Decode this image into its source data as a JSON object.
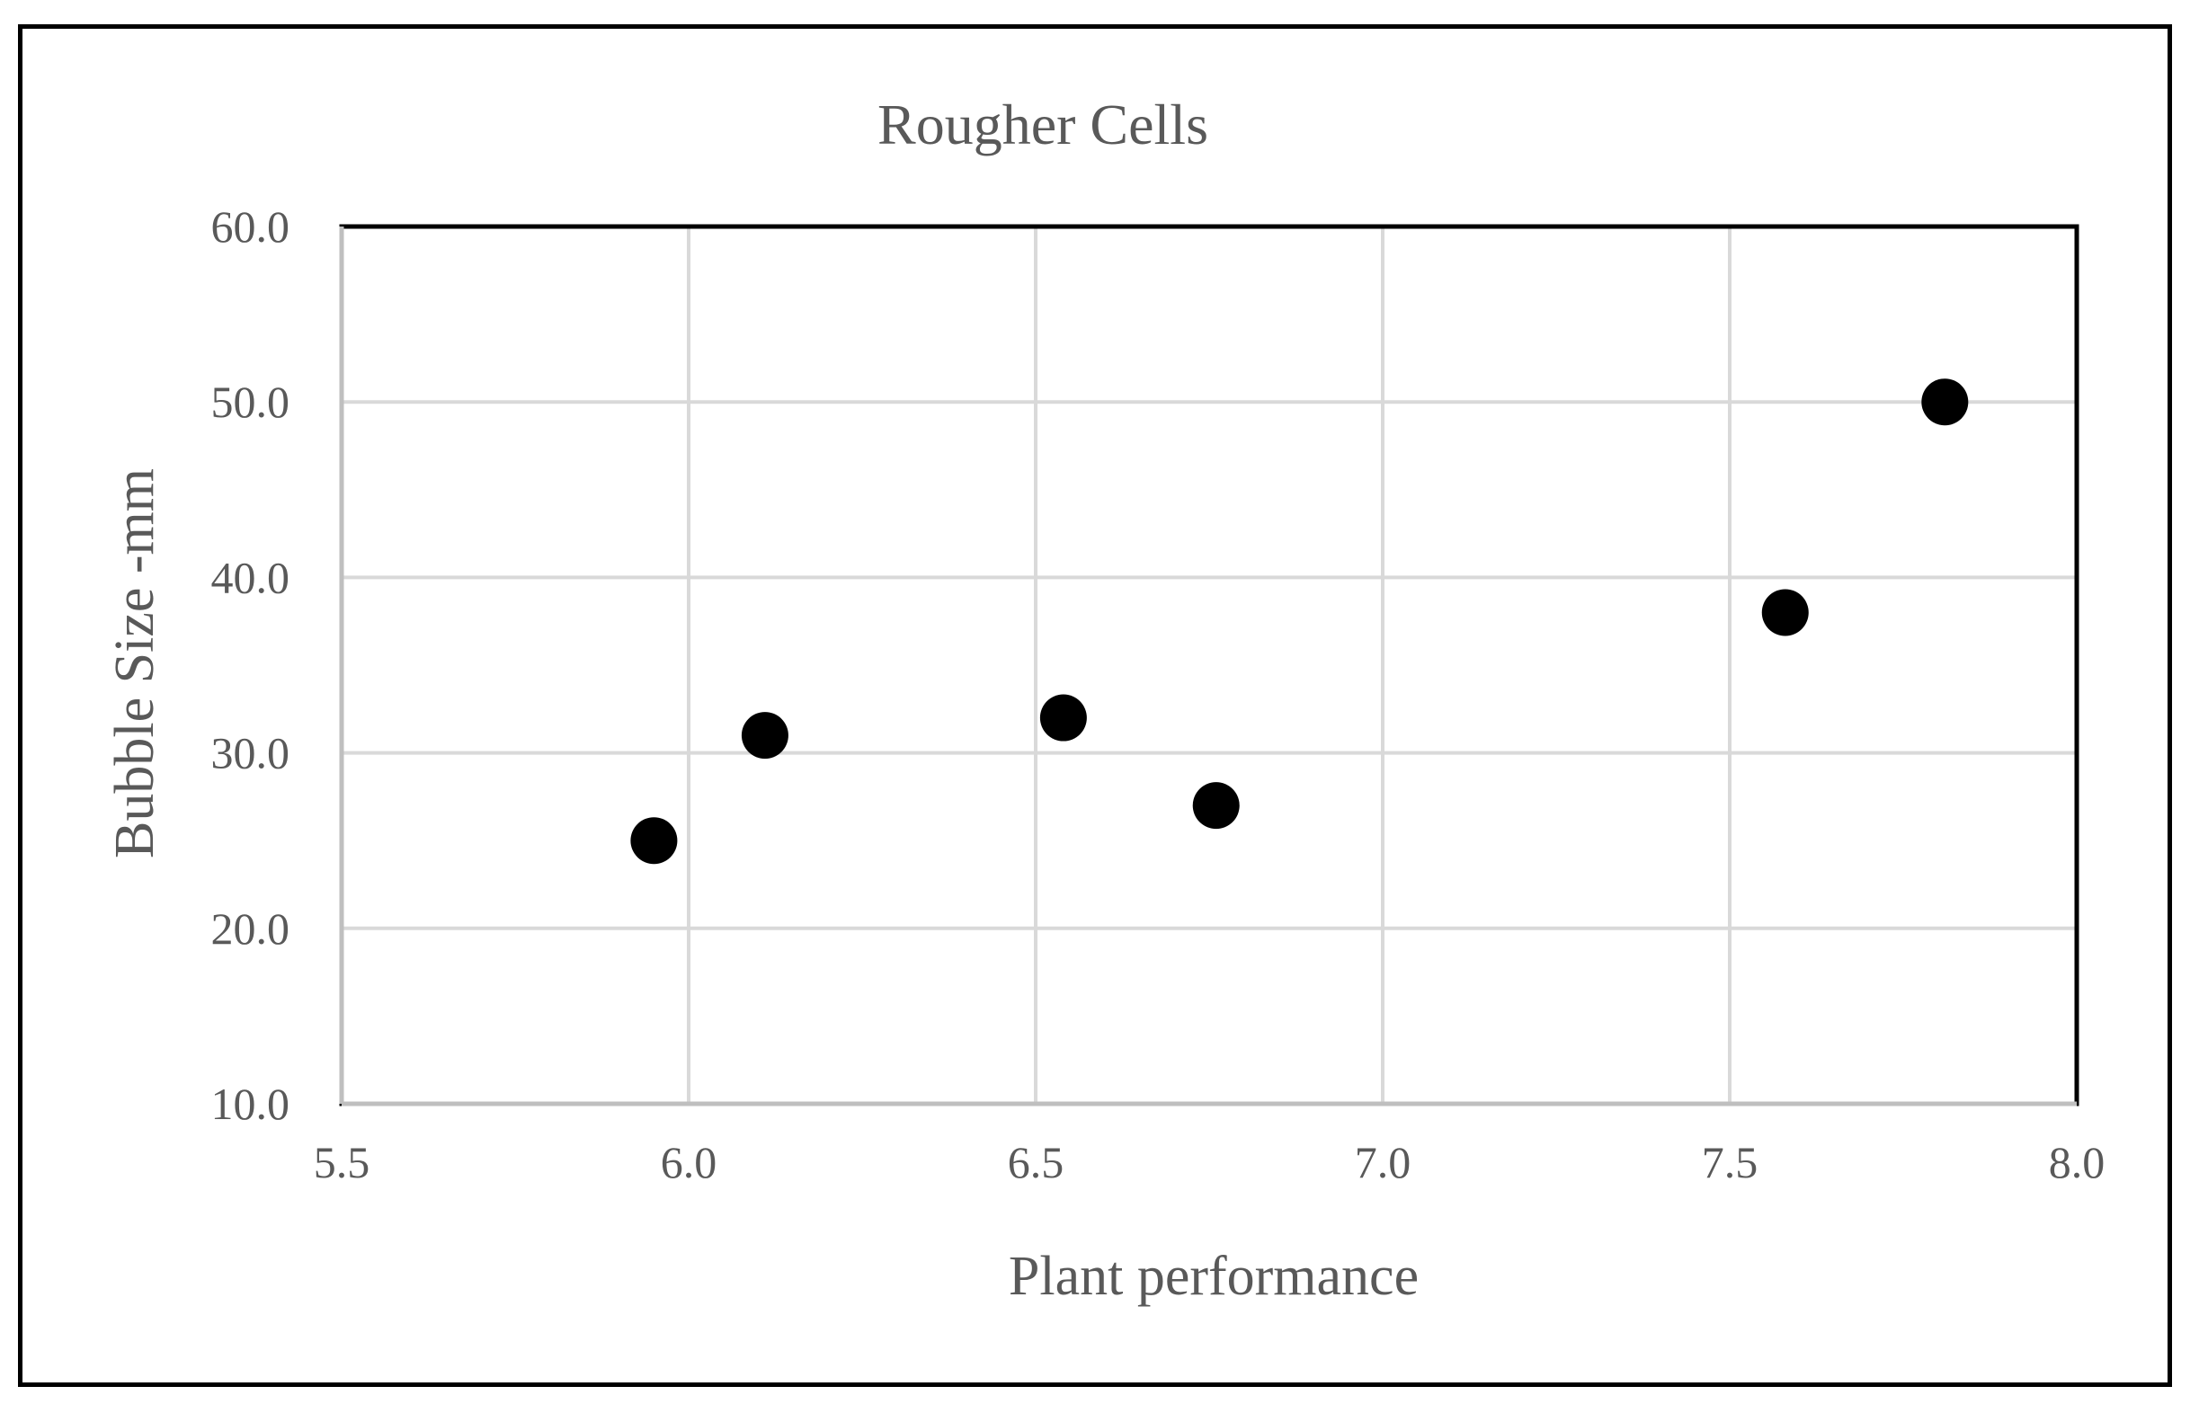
{
  "colors": {
    "background": "#ffffff",
    "frame": "#000000",
    "gridline": "#d9d9d9",
    "plot_border": "#000000",
    "marker": "#000000",
    "text": "#595959"
  },
  "chart_data": {
    "type": "scatter",
    "title": "Rougher Cells",
    "xlabel": "Plant performance",
    "ylabel": "Bubble Size -mm",
    "xlim": [
      5.5,
      8.0
    ],
    "ylim": [
      10.0,
      60.0
    ],
    "xticks": [
      5.5,
      6.0,
      6.5,
      7.0,
      7.5,
      8.0
    ],
    "yticks": [
      10.0,
      20.0,
      30.0,
      40.0,
      50.0,
      60.0
    ],
    "xtick_labels": [
      "5.5",
      "6.0",
      "6.5",
      "7.0",
      "7.5",
      "8.0"
    ],
    "ytick_labels": [
      "10.0",
      "20.0",
      "30.0",
      "40.0",
      "50.0",
      "60.0"
    ],
    "grid": true,
    "legend": "none",
    "series": [
      {
        "points": [
          {
            "x": 5.95,
            "y": 25.0
          },
          {
            "x": 6.11,
            "y": 31.0
          },
          {
            "x": 6.54,
            "y": 32.0
          },
          {
            "x": 6.76,
            "y": 27.0
          },
          {
            "x": 7.58,
            "y": 38.0
          },
          {
            "x": 7.81,
            "y": 50.0
          }
        ]
      }
    ]
  }
}
